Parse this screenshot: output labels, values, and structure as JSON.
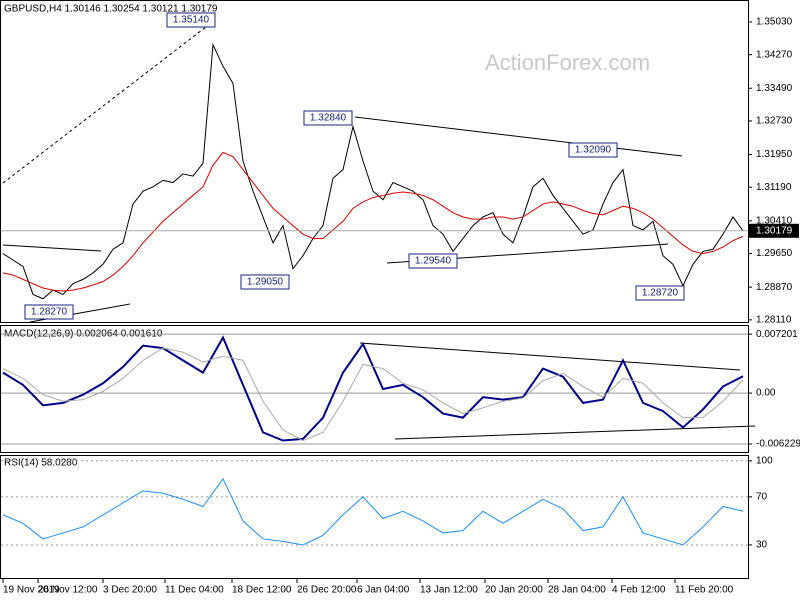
{
  "chart_data": [
    {
      "type": "line",
      "title": "GBPUSD,H4  1.30146 1.30254 1.30121 1.30179",
      "watermark": "ActionForex.com",
      "xlim": [
        0,
        74
      ],
      "xticks": [
        {
          "value": 0,
          "label": "19 Nov 2019"
        },
        {
          "value": 3.5,
          "label": "26 Nov 12:00"
        },
        {
          "value": 10,
          "label": "3 Dec 20:00"
        },
        {
          "value": 16.2,
          "label": "11 Dec 04:00"
        },
        {
          "value": 22.9,
          "label": "18 Dec 12:00"
        },
        {
          "value": 29.4,
          "label": "26 Dec 20:00"
        },
        {
          "value": 35.4,
          "label": "6 Jan 04:00"
        },
        {
          "value": 41.7,
          "label": "13 Jan 12:00"
        },
        {
          "value": 48.2,
          "label": "20 Jan 20:00"
        },
        {
          "value": 54.5,
          "label": "28 Jan 04:00"
        },
        {
          "value": 60.9,
          "label": "4 Feb 12:00"
        },
        {
          "value": 67.2,
          "label": "11 Feb 20:00"
        }
      ],
      "ylim": [
        1.2806,
        1.3554
      ],
      "yticks": [
        {
          "value": 1.3503,
          "label": "1.35030"
        },
        {
          "value": 1.3427,
          "label": "1.34270"
        },
        {
          "value": 1.3349,
          "label": "1.33490"
        },
        {
          "value": 1.3273,
          "label": "1.32730"
        },
        {
          "value": 1.3195,
          "label": "1.31950"
        },
        {
          "value": 1.3119,
          "label": "1.31190"
        },
        {
          "value": 1.3041,
          "label": "1.30410"
        },
        {
          "value": 1.2965,
          "label": "1.29650"
        },
        {
          "value": 1.2887,
          "label": "1.28870"
        },
        {
          "value": 1.2811,
          "label": "1.28110"
        }
      ],
      "last_price": {
        "value": 1.30179,
        "label": "1.30179"
      },
      "annotations": [
        "1.35140",
        "1.32840",
        "1.32090",
        "1.29540",
        "1.29050",
        "1.28720",
        "1.28270"
      ],
      "series": [
        {
          "color": "#000000",
          "values": [
            1.2965,
            1.295,
            1.2935,
            1.287,
            1.286,
            1.288,
            1.287,
            1.2895,
            1.2905,
            1.292,
            1.294,
            1.2975,
            1.299,
            1.308,
            1.311,
            1.312,
            1.3135,
            1.313,
            1.315,
            1.3145,
            1.3175,
            1.345,
            1.34,
            1.336,
            1.318,
            1.311,
            1.305,
            1.299,
            1.303,
            1.293,
            1.296,
            1.3,
            1.303,
            1.314,
            1.316,
            1.326,
            1.318,
            1.311,
            1.309,
            1.313,
            1.312,
            1.311,
            1.309,
            1.303,
            1.301,
            1.297,
            1.3,
            1.303,
            1.305,
            1.306,
            1.301,
            1.299,
            1.305,
            1.312,
            1.314,
            1.31,
            1.307,
            1.304,
            1.301,
            1.302,
            1.308,
            1.313,
            1.316,
            1.303,
            1.302,
            1.304,
            1.296,
            1.294,
            1.289,
            1.294,
            1.297,
            1.2975,
            1.301,
            1.305,
            1.30179
          ]
        },
        {
          "color": "#e00000",
          "values": [
            1.292,
            1.2915,
            1.2905,
            1.2895,
            1.2885,
            1.288,
            1.2878,
            1.288,
            1.2885,
            1.2892,
            1.29,
            1.2915,
            1.2935,
            1.296,
            1.299,
            1.3015,
            1.304,
            1.306,
            1.308,
            1.31,
            1.312,
            1.317,
            1.32,
            1.319,
            1.316,
            1.313,
            1.31,
            1.307,
            1.305,
            1.303,
            1.301,
            1.3,
            1.3,
            1.302,
            1.304,
            1.307,
            1.3085,
            1.3095,
            1.31,
            1.3105,
            1.3108,
            1.3105,
            1.31,
            1.309,
            1.3075,
            1.306,
            1.305,
            1.3045,
            1.3045,
            1.305,
            1.305,
            1.3045,
            1.305,
            1.3065,
            1.308,
            1.3085,
            1.308,
            1.3075,
            1.3065,
            1.3058,
            1.3055,
            1.3065,
            1.3075,
            1.307,
            1.306,
            1.3045,
            1.3025,
            1.3005,
            1.2985,
            1.297,
            1.2965,
            1.297,
            1.298,
            1.2995,
            1.3005
          ]
        }
      ]
    },
    {
      "type": "line",
      "title": "MACD(12,26,9) 0.002064 0.001610",
      "ylim": [
        -0.0072,
        0.0082
      ],
      "grid": true,
      "yticks": [
        0.007201,
        {
          "value": 0,
          "label": "0.00"
        },
        -0.006229
      ],
      "series": [
        {
          "color": "#00008b",
          "values": [
            0.0025,
            0.001,
            -0.0015,
            -0.0012,
            -0.0002,
            0.0012,
            0.0032,
            0.0058,
            0.0055,
            0.004,
            0.0025,
            0.0068,
            0.001,
            -0.0048,
            -0.0058,
            -0.0056,
            -0.003,
            0.0025,
            0.006,
            0.0005,
            0.001,
            -0.0005,
            -0.0025,
            -0.003,
            -0.0005,
            -0.0008,
            -0.0005,
            0.003,
            0.002,
            -0.0012,
            -0.0008,
            0.004,
            -0.0012,
            -0.0022,
            -0.0042,
            -0.002,
            0.0008,
            0.002064
          ]
        },
        {
          "color": "#a9a9a9",
          "values": [
            0.003,
            0.0018,
            -0.0002,
            -0.001,
            -0.0008,
            0.0002,
            0.0018,
            0.004,
            0.0055,
            0.005,
            0.0038,
            0.0045,
            0.004,
            -0.001,
            -0.0045,
            -0.0058,
            -0.0048,
            -0.001,
            0.0035,
            0.003,
            0.0012,
            0.0004,
            -0.0012,
            -0.0025,
            -0.0018,
            -0.001,
            -0.0006,
            0.0015,
            0.0024,
            0.0008,
            -0.0005,
            0.0018,
            0.0012,
            -0.0012,
            -0.003,
            -0.003,
            -0.001,
            0.00161
          ]
        }
      ]
    },
    {
      "type": "line",
      "title": "RSI(14) 58.0280",
      "ylim": [
        2.5,
        104
      ],
      "grid": true,
      "yticks": [
        100,
        70,
        30
      ],
      "series": [
        {
          "color": "#1e90ff",
          "values": [
            55,
            48,
            35,
            40,
            45,
            55,
            65,
            75,
            73,
            68,
            62,
            85,
            50,
            35,
            33,
            30,
            38,
            55,
            70,
            52,
            58,
            50,
            40,
            42,
            58,
            48,
            58,
            68,
            60,
            42,
            45,
            70,
            40,
            35,
            30,
            45,
            62,
            58.028
          ]
        }
      ]
    }
  ]
}
